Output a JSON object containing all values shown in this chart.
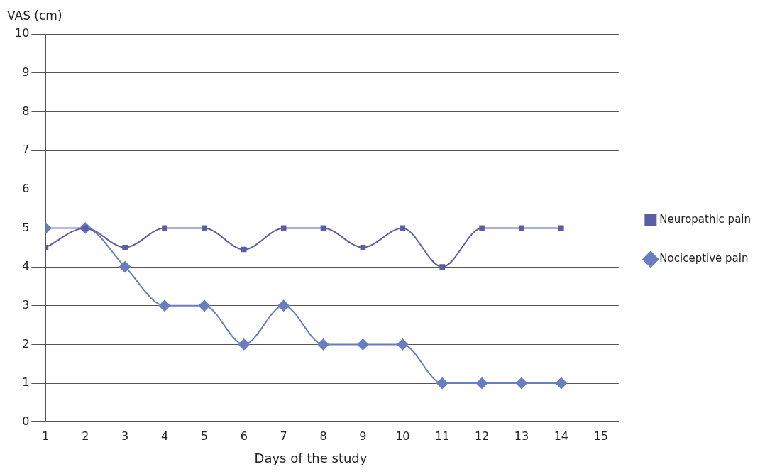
{
  "chart_data": {
    "type": "line",
    "xlabel": "Days of the study",
    "ylabel": "VAS (cm)",
    "x": [
      1,
      2,
      3,
      4,
      5,
      6,
      7,
      8,
      9,
      10,
      11,
      12,
      13,
      14
    ],
    "xlim": [
      1,
      15.45
    ],
    "xticks": [
      1,
      2,
      3,
      4,
      5,
      6,
      7,
      8,
      9,
      10,
      11,
      12,
      13,
      14,
      15
    ],
    "ylim": [
      0,
      10
    ],
    "yticks": [
      0,
      1,
      2,
      3,
      4,
      5,
      6,
      7,
      8,
      9,
      10
    ],
    "grid": "y",
    "legend": "right",
    "series": [
      {
        "name": "Neuropathic pain",
        "color": "#5b5ea6",
        "marker": "square",
        "values": [
          4.5,
          5,
          4.5,
          5,
          5,
          4.45,
          5,
          5,
          4.5,
          5,
          4,
          5,
          5,
          5
        ]
      },
      {
        "name": "Nociceptive pain",
        "color": "#6a7cc2",
        "marker": "diamond",
        "values": [
          5,
          5,
          4,
          3,
          3,
          2,
          3,
          2,
          2,
          2,
          1,
          1,
          1,
          1
        ]
      }
    ]
  }
}
